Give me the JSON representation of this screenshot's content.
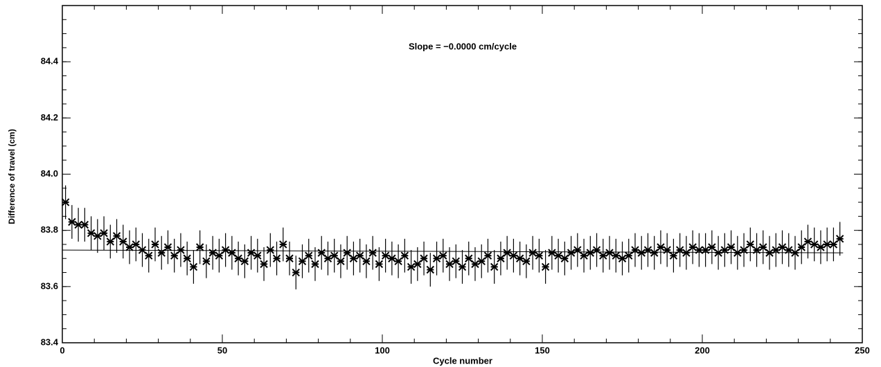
{
  "chart_data": {
    "type": "errorbar-scatter",
    "annotation": "Slope = −0.0000 cm/cycle",
    "x_label": "Cycle number",
    "y_label": "Difference of travel   (cm)",
    "xlim": [
      0,
      250
    ],
    "xticks": [
      0,
      50,
      100,
      150,
      200,
      250
    ],
    "ylim": [
      83.4,
      84.6
    ],
    "yticks": [
      83.4,
      83.6,
      83.8,
      {
        "value": 84,
        "label": "84.0"
      },
      84.2,
      84.4
    ],
    "color": "#000000",
    "error": 0.06,
    "x": [
      1,
      3,
      5,
      7,
      9,
      11,
      13,
      15,
      17,
      19,
      21,
      23,
      25,
      27,
      29,
      31,
      33,
      35,
      37,
      39,
      41,
      43,
      45,
      47,
      49,
      51,
      53,
      55,
      57,
      59,
      61,
      63,
      65,
      67,
      69,
      71,
      73,
      75,
      77,
      79,
      81,
      83,
      85,
      87,
      89,
      91,
      93,
      95,
      97,
      99,
      101,
      103,
      105,
      107,
      109,
      111,
      113,
      115,
      117,
      119,
      121,
      123,
      125,
      127,
      129,
      131,
      133,
      135,
      137,
      139,
      141,
      143,
      145,
      147,
      149,
      151,
      153,
      155,
      157,
      159,
      161,
      163,
      165,
      167,
      169,
      171,
      173,
      175,
      177,
      179,
      181,
      183,
      185,
      187,
      189,
      191,
      193,
      195,
      197,
      199,
      201,
      203,
      205,
      207,
      209,
      211,
      213,
      215,
      217,
      219,
      221,
      223,
      225,
      227,
      229,
      231,
      233,
      235,
      237,
      239,
      241,
      243
    ],
    "values": [
      83.9,
      83.83,
      83.82,
      83.82,
      83.79,
      83.78,
      83.79,
      83.76,
      83.78,
      83.76,
      83.74,
      83.75,
      83.73,
      83.71,
      83.75,
      83.72,
      83.74,
      83.71,
      83.73,
      83.7,
      83.67,
      83.74,
      83.69,
      83.72,
      83.71,
      83.73,
      83.72,
      83.7,
      83.69,
      83.72,
      83.71,
      83.68,
      83.73,
      83.7,
      83.75,
      83.7,
      83.65,
      83.69,
      83.71,
      83.68,
      83.72,
      83.7,
      83.71,
      83.69,
      83.72,
      83.7,
      83.71,
      83.69,
      83.72,
      83.68,
      83.71,
      83.7,
      83.69,
      83.71,
      83.67,
      83.68,
      83.7,
      83.66,
      83.7,
      83.71,
      83.68,
      83.69,
      83.67,
      83.7,
      83.68,
      83.69,
      83.71,
      83.67,
      83.7,
      83.72,
      83.71,
      83.7,
      83.69,
      83.72,
      83.71,
      83.67,
      83.72,
      83.71,
      83.7,
      83.72,
      83.73,
      83.71,
      83.72,
      83.73,
      83.71,
      83.72,
      83.71,
      83.7,
      83.71,
      83.73,
      83.72,
      83.73,
      83.72,
      83.74,
      83.73,
      83.71,
      83.73,
      83.72,
      83.74,
      83.73,
      83.73,
      83.74,
      83.72,
      83.73,
      83.74,
      83.72,
      83.73,
      83.75,
      83.73,
      83.74,
      83.72,
      83.73,
      83.74,
      83.73,
      83.72,
      83.74,
      83.76,
      83.75,
      83.74,
      83.75,
      83.75,
      83.77
    ],
    "fit": {
      "x": [
        0,
        244
      ],
      "y": [
        83.73,
        83.72
      ]
    }
  }
}
